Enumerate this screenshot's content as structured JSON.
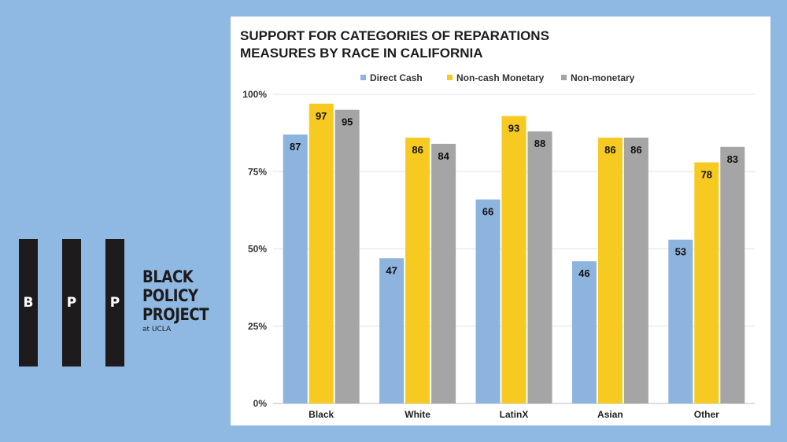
{
  "logo": {
    "letters": [
      "B",
      "P",
      "P"
    ],
    "lines": [
      "BLACK",
      "POLICY",
      "PROJECT"
    ],
    "sub": "at UCLA"
  },
  "chart_data": {
    "type": "bar",
    "title_lines": [
      "SUPPORT FOR CATEGORIES OF REPARATIONS",
      "MEASURES BY RACE IN CALIFORNIA"
    ],
    "categories": [
      "Black",
      "White",
      "LatinX",
      "Asian",
      "Other"
    ],
    "series": [
      {
        "name": "Direct Cash",
        "color": "#8cb4df",
        "values": [
          87,
          47,
          66,
          46,
          53
        ]
      },
      {
        "name": "Non-cash Monetary",
        "color": "#f7ca22",
        "values": [
          97,
          86,
          93,
          86,
          78
        ]
      },
      {
        "name": "Non-monetary",
        "color": "#a5a5a5",
        "values": [
          95,
          84,
          88,
          86,
          83
        ]
      }
    ],
    "ylim": [
      0,
      100
    ],
    "yticks": [
      0,
      25,
      50,
      75,
      100
    ],
    "ytick_labels": [
      "0%",
      "25%",
      "50%",
      "75%",
      "100%"
    ],
    "grid": true,
    "legend_position": "top-center",
    "xlabel": "",
    "ylabel": ""
  }
}
